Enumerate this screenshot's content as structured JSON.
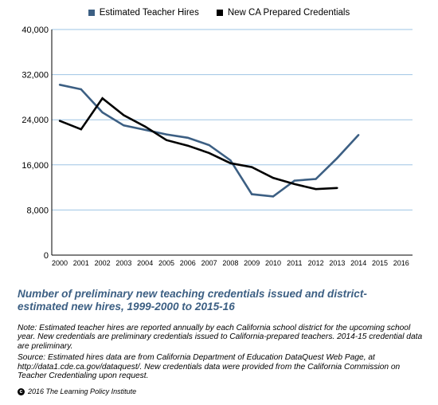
{
  "chart_data": {
    "type": "line",
    "x": [
      2000,
      2001,
      2002,
      2003,
      2004,
      2005,
      2006,
      2007,
      2008,
      2009,
      2010,
      2011,
      2012,
      2013,
      2014,
      2015,
      2016
    ],
    "x_tick_labels": [
      "2000",
      "2001",
      "2002",
      "2003",
      "2004",
      "2005",
      "2006",
      "2007",
      "2008",
      "2009",
      "2010",
      "2011",
      "2012",
      "2013",
      "2014",
      "2015",
      "2016"
    ],
    "y_ticks": [
      0,
      8000,
      16000,
      24000,
      32000,
      40000
    ],
    "y_tick_labels": [
      "0",
      "8,000",
      "16,000",
      "24,000",
      "32,000",
      "40,000"
    ],
    "ylim": [
      0,
      40000
    ],
    "grid": "horizontal",
    "legend_position": "top-center",
    "series": [
      {
        "name": "Estimated Teacher Hires",
        "color": "#3c5f83",
        "points": [
          [
            2000,
            30200
          ],
          [
            2001,
            29400
          ],
          [
            2002,
            25300
          ],
          [
            2003,
            23000
          ],
          [
            2004,
            22200
          ],
          [
            2005,
            21400
          ],
          [
            2006,
            20800
          ],
          [
            2007,
            19500
          ],
          [
            2008,
            16800
          ],
          [
            2009,
            10800
          ],
          [
            2010,
            10400
          ],
          [
            2011,
            13200
          ],
          [
            2012,
            13500
          ],
          [
            2013,
            17200
          ],
          [
            2014,
            21300
          ]
        ]
      },
      {
        "name": "New CA Prepared Credentials",
        "color": "#000000",
        "points": [
          [
            2000,
            23800
          ],
          [
            2001,
            22300
          ],
          [
            2002,
            27800
          ],
          [
            2003,
            24800
          ],
          [
            2004,
            22800
          ],
          [
            2005,
            20400
          ],
          [
            2006,
            19400
          ],
          [
            2007,
            18100
          ],
          [
            2008,
            16300
          ],
          [
            2009,
            15600
          ],
          [
            2010,
            13700
          ],
          [
            2011,
            12600
          ],
          [
            2012,
            11700
          ],
          [
            2013,
            11900
          ]
        ]
      }
    ]
  },
  "caption": "Number of preliminary new teaching credentials issued and district-estimated new hires, 1999-2000 to 2015-16",
  "note": "Note: Estimated teacher hires are reported annually by each California school district for the upcoming school year. New credentials are preliminary credentials issued to California-prepared teachers. 2014-15 credential data are preliminary.",
  "source": "Source: Estimated hires data are from California Department of Education DataQuest Web Page, at http://data1.cde.ca.gov/dataquest/.  New credentials data were provided from the California Commission on Teacher Credentialing upon request.",
  "copyright": "2016 The Learning Policy Institute",
  "copyright_symbol": "c"
}
